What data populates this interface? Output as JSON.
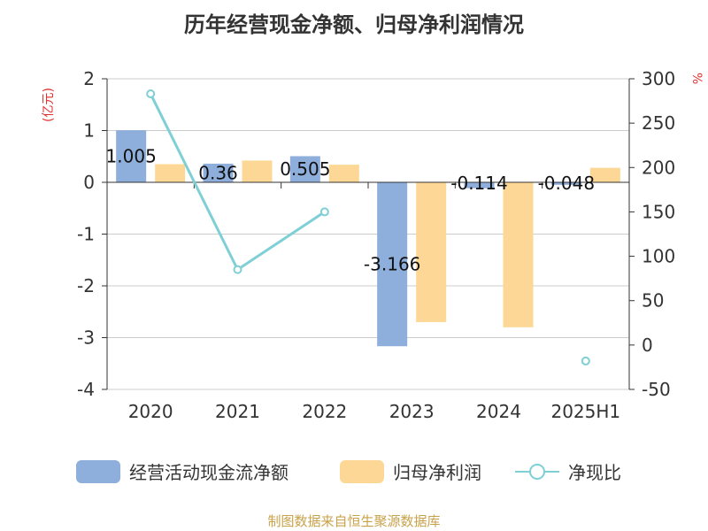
{
  "chart_data": {
    "type": "bar",
    "title": "历年经营现金净额、归母净利润情况",
    "categories": [
      "2020",
      "2021",
      "2022",
      "2023",
      "2024",
      "2025H1"
    ],
    "series": [
      {
        "name": "经营活动现金流净额",
        "type": "bar",
        "axis": "left",
        "color": "#8eaedc",
        "values": [
          1.005,
          0.36,
          0.505,
          -3.166,
          -0.114,
          -0.048
        ],
        "labels": [
          "1.005",
          "0.36",
          "0.505",
          "-3.166",
          "-0.114",
          "-0.048"
        ]
      },
      {
        "name": "归母净利润",
        "type": "bar",
        "axis": "left",
        "color": "#fdd796",
        "values": [
          0.35,
          0.42,
          0.34,
          -2.7,
          -2.8,
          0.28
        ]
      },
      {
        "name": "净现比",
        "type": "line",
        "axis": "right",
        "color": "#7fcfd6",
        "values": [
          283,
          85,
          150,
          null,
          null,
          -18
        ]
      }
    ],
    "y_left": {
      "unit": "(亿元)",
      "min": -4,
      "max": 2,
      "ticks": [
        "2",
        "1",
        "0",
        "-1",
        "-2",
        "-3",
        "-4"
      ]
    },
    "y_right": {
      "unit": "%",
      "min": -50,
      "max": 300,
      "ticks": [
        "300",
        "250",
        "200",
        "150",
        "100",
        "50",
        "0",
        "-50"
      ]
    },
    "grid": true,
    "legend_position": "bottom"
  },
  "source": "制图数据来自恒生聚源数据库",
  "colors": {
    "axis_unit": "#e0312e",
    "source": "#c8a24a",
    "grid": "#cccccc",
    "text": "#333333"
  }
}
